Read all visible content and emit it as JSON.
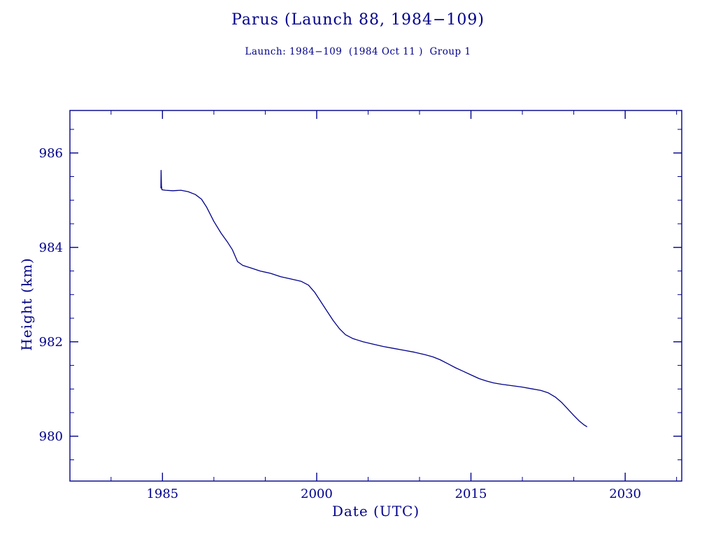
{
  "title": "Parus (Launch 88, 1984−109)",
  "subtitle": "Launch: 1984−109  (1984 Oct 11 )  Group 1",
  "colors": {
    "ink": "#00008b",
    "line": "#00008b",
    "background": "#ffffff"
  },
  "chart_data": {
    "type": "line",
    "title": "Parus (Launch 88, 1984−109)",
    "subtitle": "Launch: 1984−109  (1984 Oct 11 )  Group 1",
    "xlabel": "Date (UTC)",
    "ylabel": "Height (km)",
    "xlim": [
      1976,
      2035.5
    ],
    "ylim": [
      979.05,
      986.9
    ],
    "xticks": [
      1985,
      2000,
      2015,
      2030
    ],
    "yticks": [
      980,
      982,
      984,
      986
    ],
    "x_minor_step": 5,
    "y_minor_step": 0.5,
    "grid": false,
    "legend": "none",
    "series": [
      {
        "name": "orbital-height",
        "points": [
          [
            1984.85,
            985.25
          ],
          [
            1984.87,
            985.63
          ],
          [
            1984.9,
            985.3
          ],
          [
            1984.95,
            985.22
          ],
          [
            1985.3,
            985.21
          ],
          [
            1986.0,
            985.2
          ],
          [
            1986.8,
            985.21
          ],
          [
            1987.5,
            985.18
          ],
          [
            1988.2,
            985.12
          ],
          [
            1988.8,
            985.02
          ],
          [
            1989.3,
            984.85
          ],
          [
            1990.0,
            984.55
          ],
          [
            1990.7,
            984.3
          ],
          [
            1991.3,
            984.12
          ],
          [
            1991.8,
            983.95
          ],
          [
            1992.3,
            983.7
          ],
          [
            1992.8,
            983.62
          ],
          [
            1993.5,
            983.57
          ],
          [
            1994.5,
            983.5
          ],
          [
            1995.5,
            983.45
          ],
          [
            1996.5,
            983.38
          ],
          [
            1997.5,
            983.33
          ],
          [
            1998.5,
            983.28
          ],
          [
            1999.2,
            983.2
          ],
          [
            1999.8,
            983.05
          ],
          [
            2000.4,
            982.85
          ],
          [
            2001.0,
            982.65
          ],
          [
            2001.6,
            982.45
          ],
          [
            2002.2,
            982.28
          ],
          [
            2002.8,
            982.15
          ],
          [
            2003.5,
            982.07
          ],
          [
            2004.5,
            982.0
          ],
          [
            2005.5,
            981.95
          ],
          [
            2006.5,
            981.9
          ],
          [
            2007.5,
            981.86
          ],
          [
            2008.5,
            981.82
          ],
          [
            2009.5,
            981.78
          ],
          [
            2010.5,
            981.73
          ],
          [
            2011.3,
            981.68
          ],
          [
            2012.0,
            981.62
          ],
          [
            2012.8,
            981.53
          ],
          [
            2013.5,
            981.45
          ],
          [
            2014.2,
            981.38
          ],
          [
            2015.0,
            981.3
          ],
          [
            2015.8,
            981.22
          ],
          [
            2016.5,
            981.17
          ],
          [
            2017.2,
            981.13
          ],
          [
            2018.0,
            981.1
          ],
          [
            2019.0,
            981.07
          ],
          [
            2020.0,
            981.04
          ],
          [
            2021.0,
            981.0
          ],
          [
            2021.8,
            980.97
          ],
          [
            2022.5,
            980.92
          ],
          [
            2023.2,
            980.83
          ],
          [
            2023.8,
            980.72
          ],
          [
            2024.4,
            980.58
          ],
          [
            2025.0,
            980.44
          ],
          [
            2025.5,
            980.33
          ],
          [
            2026.0,
            980.24
          ],
          [
            2026.3,
            980.2
          ]
        ]
      }
    ]
  }
}
